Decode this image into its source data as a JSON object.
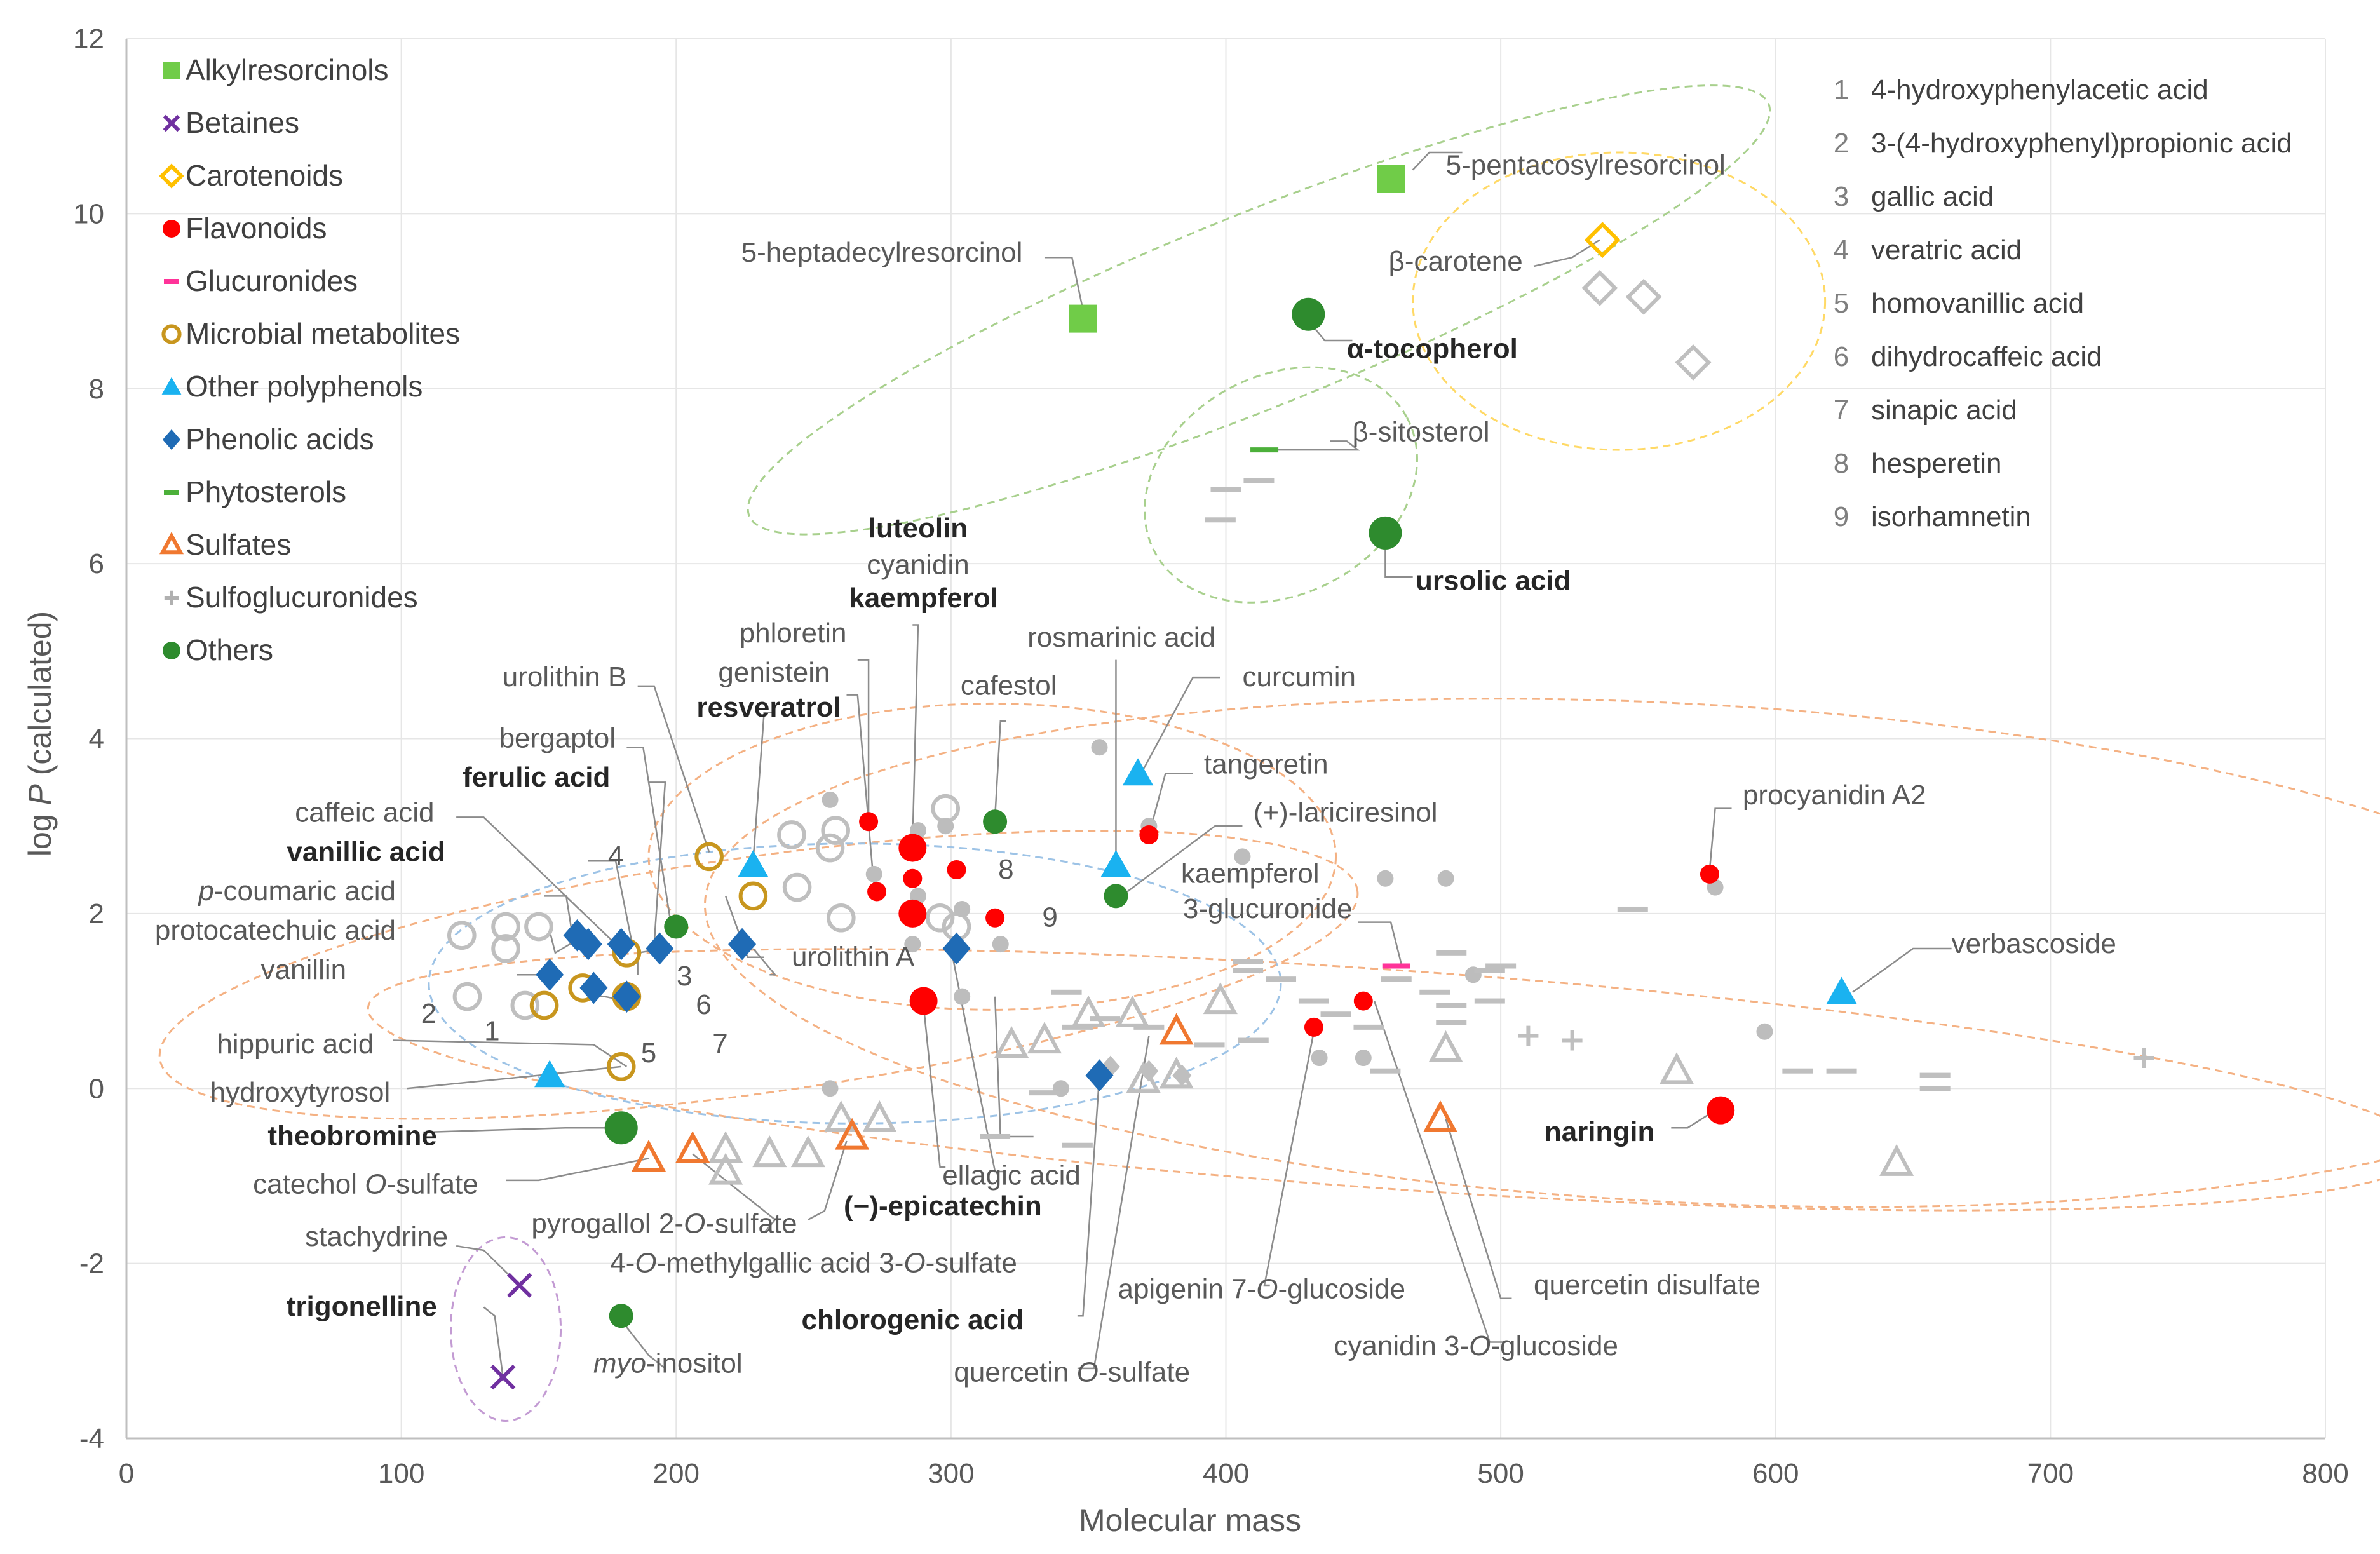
{
  "chart_data": {
    "type": "scatter",
    "title": "",
    "xlabel": "Molecular mass",
    "ylabel": "log P (calculated)",
    "xlim": [
      0,
      800
    ],
    "ylim": [
      -4,
      12
    ],
    "xticks": [
      0,
      100,
      200,
      300,
      400,
      500,
      600,
      700,
      800
    ],
    "yticks": [
      -4,
      -2,
      0,
      2,
      4,
      6,
      8,
      10,
      12
    ],
    "grid": "horizontal and vertical",
    "legend_position": "top-left",
    "legend": [
      {
        "name": "Alkylresorcinols",
        "marker": "square",
        "color": "#70cc48"
      },
      {
        "name": "Betaines",
        "marker": "x",
        "color": "#7030a0"
      },
      {
        "name": "Carotenoids",
        "marker": "diamond-open",
        "color": "#ffc000"
      },
      {
        "name": "Flavonoids",
        "marker": "circle",
        "color": "#ff0000"
      },
      {
        "name": "Glucuronides",
        "marker": "dash",
        "color": "#ff3399"
      },
      {
        "name": "Microbial metabolites",
        "marker": "circle-open",
        "color": "#c8961e"
      },
      {
        "name": "Other polyphenols",
        "marker": "triangle",
        "color": "#1ab2f0"
      },
      {
        "name": "Phenolic acids",
        "marker": "diamond",
        "color": "#1f6bb5"
      },
      {
        "name": "Phytosterols",
        "marker": "dash",
        "color": "#4cb03a"
      },
      {
        "name": "Sulfates",
        "marker": "triangle-open",
        "color": "#f07830"
      },
      {
        "name": "Sulfoglucuronides",
        "marker": "plus",
        "color": "#b0b0b0"
      },
      {
        "name": "Others",
        "marker": "circle",
        "color": "#2e8b2e"
      }
    ],
    "key": [
      {
        "num": "1",
        "name": "4-hydroxyphenylacetic acid"
      },
      {
        "num": "2",
        "name": "3-(4-hydroxyphenyl)propionic acid"
      },
      {
        "num": "3",
        "name": "gallic acid"
      },
      {
        "num": "4",
        "name": "veratric acid"
      },
      {
        "num": "5",
        "name": "homovanillic acid"
      },
      {
        "num": "6",
        "name": "dihydrocaffeic acid"
      },
      {
        "num": "7",
        "name": "sinapic acid"
      },
      {
        "num": "8",
        "name": "hesperetin"
      },
      {
        "num": "9",
        "name": "isorhamnetin"
      }
    ],
    "series": [
      {
        "name": "Alkylresorcinols",
        "points": [
          [
            348,
            8.8
          ],
          [
            460,
            10.4
          ]
        ]
      },
      {
        "name": "Betaines",
        "points": [
          [
            143,
            -2.25
          ],
          [
            137,
            -3.3
          ]
        ]
      },
      {
        "name": "Carotenoids",
        "points": [
          [
            537,
            9.7
          ]
        ]
      },
      {
        "name": "Flavonoids",
        "points": [
          [
            270,
            3.05
          ],
          [
            273,
            2.25
          ],
          [
            286,
            2.75
          ],
          [
            286,
            2.4
          ],
          [
            286,
            2.0
          ],
          [
            290,
            1.0
          ],
          [
            302,
            2.5
          ],
          [
            316,
            1.95
          ],
          [
            372,
            2.9
          ],
          [
            432,
            0.7
          ],
          [
            450,
            1.0
          ],
          [
            576,
            2.45
          ],
          [
            580,
            -0.25
          ]
        ]
      },
      {
        "name": "Glucuronides",
        "points": [
          [
            462,
            1.4
          ]
        ]
      },
      {
        "name": "Microbial metabolites",
        "points": [
          [
            212,
            2.65
          ],
          [
            228,
            2.2
          ],
          [
            166,
            1.15
          ],
          [
            152,
            0.95
          ],
          [
            182,
            1.55
          ],
          [
            182,
            1.05
          ],
          [
            180,
            0.25
          ]
        ]
      },
      {
        "name": "Other polyphenols",
        "points": [
          [
            228,
            2.55
          ],
          [
            368,
            3.6
          ],
          [
            360,
            2.55
          ],
          [
            154,
            0.15
          ],
          [
            624,
            1.1
          ]
        ]
      },
      {
        "name": "Phenolic acids",
        "points": [
          [
            164,
            1.75
          ],
          [
            168,
            1.65
          ],
          [
            180,
            1.65
          ],
          [
            194,
            1.6
          ],
          [
            154,
            1.3
          ],
          [
            170,
            1.15
          ],
          [
            182,
            1.05
          ],
          [
            224,
            1.65
          ],
          [
            302,
            1.6
          ],
          [
            354,
            0.15
          ]
        ]
      },
      {
        "name": "Phytosterols",
        "points": [
          [
            414,
            7.3
          ]
        ]
      },
      {
        "name": "Sulfates",
        "points": [
          [
            190,
            -0.8
          ],
          [
            206,
            -0.7
          ],
          [
            264,
            -0.55
          ],
          [
            382,
            0.65
          ],
          [
            478,
            -0.35
          ]
        ]
      },
      {
        "name": "Others",
        "points": [
          [
            430,
            8.85
          ],
          [
            458,
            6.35
          ],
          [
            200,
            1.85
          ],
          [
            316,
            3.05
          ],
          [
            360,
            2.2
          ],
          [
            180,
            -0.45
          ],
          [
            180,
            -2.6
          ]
        ]
      }
    ],
    "labels": {
      "alk_penta": "5-pentacosylresorcinol",
      "alk_hepta": "5-heptadecylresorcinol",
      "beta_carotene": "β-carotene",
      "tocopherol": "α-tocopherol",
      "sitosterol": "β-sitosterol",
      "ursolic": "ursolic acid",
      "luteolin": "luteolin",
      "cyanidin": "cyanidin",
      "kaempferol": "kaempferol",
      "phloretin": "phloretin",
      "genistein": "genistein",
      "urolithin_b": "urolithin B",
      "resveratrol": "resveratrol",
      "cafestol": "cafestol",
      "rosmarinic": "rosmarinic acid",
      "curcumin": "curcumin",
      "tangeretin": "tangeretin",
      "lariciresinol": "(+)-lariciresinol",
      "procyanidin": "procyanidin A2",
      "kaemp_gluc_1": "kaempferol",
      "kaemp_gluc_2": "3-glucuronide",
      "verbascoside": "verbascoside",
      "bergaptol": "bergaptol",
      "ferulic": "ferulic acid",
      "caffeic": "caffeic acid",
      "vanillic": "vanillic acid",
      "coumaric_p": "p",
      "coumaric_rest": "-coumaric acid",
      "protocatechuic": "protocatechuic acid",
      "vanillin": "vanillin",
      "urolithin_a": "urolithin A",
      "hippuric": "hippuric acid",
      "hydroxytyrosol": "hydroxytyrosol",
      "theobromine": "theobromine",
      "catechol_1": "catechol ",
      "catechol_2": "O",
      "catechol_3": "-sulfate",
      "pyrogallol_1": "pyrogallol 2-",
      "pyrogallol_2": "O",
      "pyrogallol_3": "-sulfate",
      "ellagic": "ellagic acid",
      "epicatechin": "(−)-epicatechin",
      "methylgallic_1": "4-",
      "methylgallic_2": "O",
      "methylgallic_3": "-methylgallic acid 3-",
      "methylgallic_4": "O",
      "methylgallic_5": "-sulfate",
      "stachydrine": "stachydrine",
      "trigonelline": "trigonelline",
      "myo_1": "myo",
      "myo_2": "-inositol",
      "chlorogenic": "chlorogenic acid",
      "quercetin_sulf_1": "quercetin ",
      "quercetin_sulf_2": "O",
      "quercetin_sulf_3": "-sulfate",
      "apigenin_1": "apigenin 7-",
      "apigenin_2": "O",
      "apigenin_3": "-glucoside",
      "cyanidin_gluc_1": "cyanidin 3-",
      "cyanidin_gluc_2": "O",
      "cyanidin_gluc_3": "-glucoside",
      "quercetin_disulfate": "quercetin disulfate",
      "naringin": "naringin",
      "n1": "1",
      "n2": "2",
      "n3": "3",
      "n4": "4",
      "n5": "5",
      "n6": "6",
      "n7": "7",
      "n8": "8",
      "n9": "9"
    }
  }
}
